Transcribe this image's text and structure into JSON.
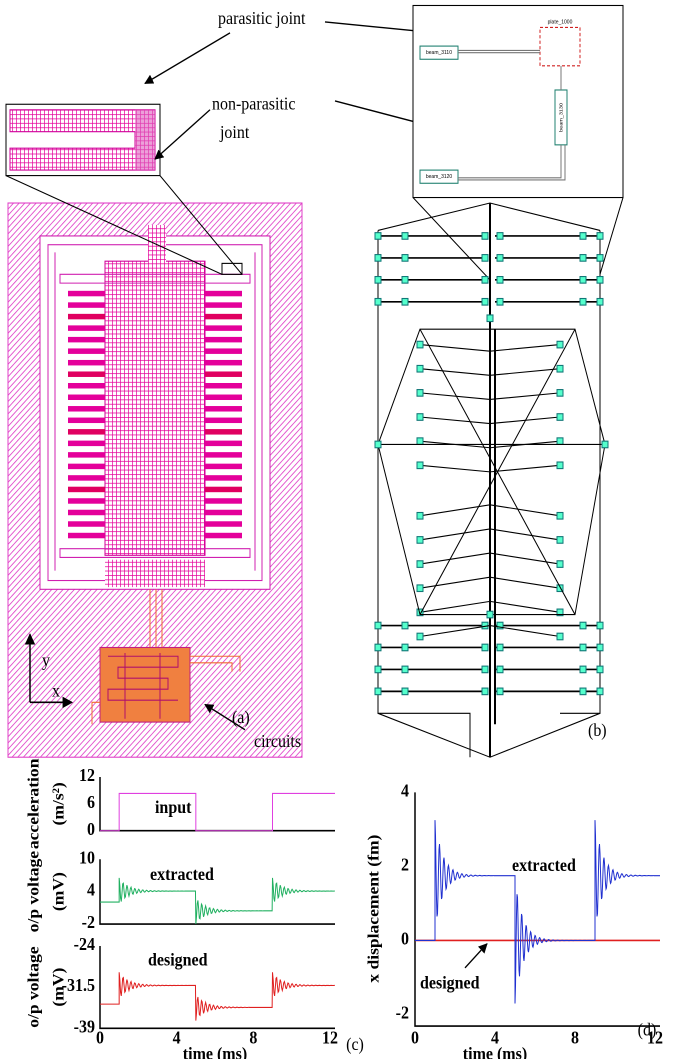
{
  "annotations": {
    "parasitic_joint": "parasitic joint",
    "non_parasitic_joint": [
      "non-parasitic",
      "joint"
    ],
    "circuits": "circuits",
    "axis_x": "x",
    "axis_y": "y"
  },
  "panel_labels": {
    "a": "(a)",
    "b": "(b)",
    "c": "(c)",
    "d": "(d)"
  },
  "schematic_inset": {
    "labels": [
      "plate_1000",
      "beam_3110",
      "beam_3130",
      "beam_3120"
    ]
  },
  "plot_c": {
    "subplots": [
      {
        "ylabel": [
          "acceleration",
          "(m/s²)"
        ],
        "yticks": [
          "12",
          "6",
          "0"
        ],
        "label": "input"
      },
      {
        "ylabel": [
          "o/p voltage",
          "(mV)"
        ],
        "yticks": [
          "10",
          "4",
          "-2"
        ],
        "label": "extracted"
      },
      {
        "ylabel": [
          "o/p voltage",
          "(mV)"
        ],
        "yticks": [
          "-24",
          "-31.5",
          "-39"
        ],
        "label": "designed"
      }
    ],
    "xticks": [
      "0",
      "4",
      "8",
      "12"
    ],
    "xlabel": "time (ms)"
  },
  "plot_d": {
    "ylabel": "x displacement (fm)",
    "yticks": [
      "4",
      "2",
      "0",
      "-2"
    ],
    "xticks": [
      "0",
      "4",
      "8",
      "12"
    ],
    "xlabel": "time (ms)",
    "labels": {
      "extracted": "extracted",
      "designed": "designed"
    }
  }
}
